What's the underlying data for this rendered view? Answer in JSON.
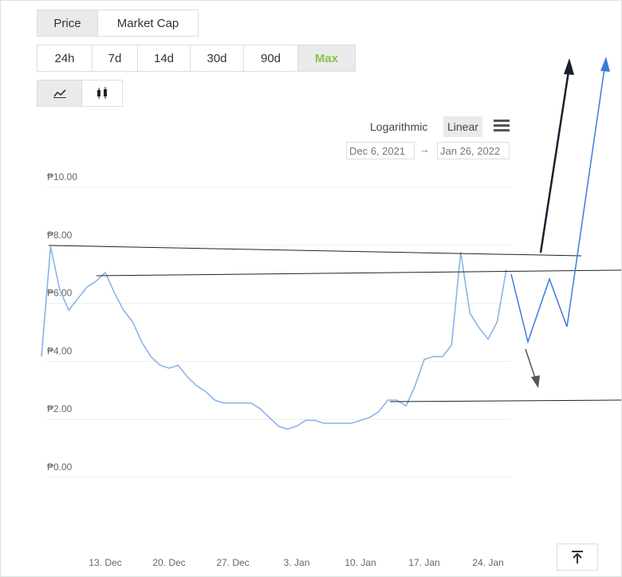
{
  "controls": {
    "tabs": [
      "Price",
      "Market Cap"
    ],
    "ranges": [
      "24h",
      "7d",
      "14d",
      "30d",
      "90d",
      "Max"
    ],
    "scales": [
      "Logarithmic",
      "Linear"
    ],
    "date_from": "Dec 6, 2021",
    "date_sep": "→",
    "date_to": "Jan 26, 2022"
  },
  "chart_data": {
    "type": "line",
    "color": "#8ab4e8",
    "categories": [
      null,
      null,
      null,
      null,
      null,
      null,
      null,
      "13. Dec",
      null,
      null,
      null,
      null,
      null,
      null,
      "20. Dec",
      null,
      null,
      null,
      null,
      null,
      null,
      "27. Dec",
      null,
      null,
      null,
      null,
      null,
      null,
      "3. Jan",
      null,
      null,
      null,
      null,
      null,
      null,
      "10. Jan",
      null,
      null,
      null,
      null,
      null,
      null,
      "17. Jan",
      null,
      null,
      null,
      null,
      null,
      null,
      "24. Jan",
      null,
      null
    ],
    "values": [
      4.0,
      7.8,
      6.3,
      5.6,
      6.0,
      6.4,
      6.6,
      6.9,
      6.2,
      5.6,
      5.2,
      4.5,
      4.0,
      3.7,
      3.6,
      3.7,
      3.3,
      3.0,
      2.8,
      2.5,
      2.4,
      2.4,
      2.4,
      2.4,
      2.2,
      1.9,
      1.6,
      1.5,
      1.6,
      1.8,
      1.8,
      1.7,
      1.7,
      1.7,
      1.7,
      1.8,
      1.9,
      2.1,
      2.5,
      2.5,
      2.3,
      3.0,
      3.9,
      4.0,
      4.0,
      4.4,
      7.6,
      5.5,
      5.0,
      4.6,
      5.2,
      7.0
    ],
    "ylim": [
      0,
      10
    ],
    "yticks": [
      {
        "value": 0,
        "label": "₱0.00"
      },
      {
        "value": 2,
        "label": "₱2.00"
      },
      {
        "value": 4,
        "label": "₱4.00"
      },
      {
        "value": 6,
        "label": "₱6.00"
      },
      {
        "value": 8,
        "label": "₱8.00"
      },
      {
        "value": 10,
        "label": "₱10.00"
      }
    ],
    "grid": true
  }
}
